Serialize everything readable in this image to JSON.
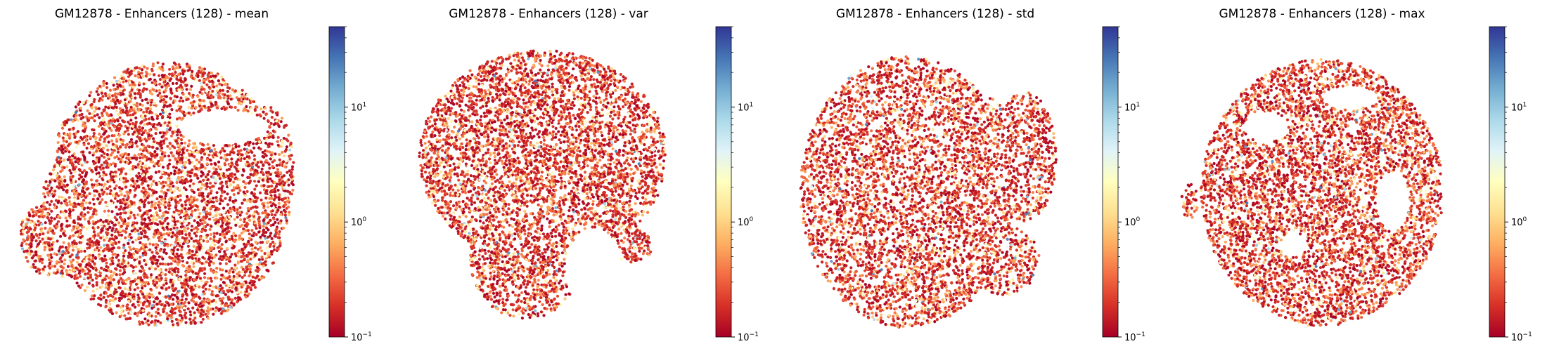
{
  "chart_data": [
    {
      "type": "scatter",
      "title": "GM12878 - Enhancers (128) - mean",
      "xlabel": "",
      "ylabel": "",
      "colorbar": {
        "scale": "log",
        "cmap": "RdYlBu",
        "range": [
          0.1,
          50
        ],
        "ticks": [
          "10^-1",
          "10^0",
          "10^1"
        ]
      },
      "num_points_approx": 9000,
      "shape": "mean",
      "seed": 11
    },
    {
      "type": "scatter",
      "title": "GM12878 - Enhancers (128) - var",
      "xlabel": "",
      "ylabel": "",
      "colorbar": {
        "scale": "log",
        "cmap": "RdYlBu",
        "range": [
          0.1,
          50
        ],
        "ticks": [
          "10^-1",
          "10^0",
          "10^1"
        ]
      },
      "num_points_approx": 9000,
      "shape": "var",
      "seed": 23
    },
    {
      "type": "scatter",
      "title": "GM12878 - Enhancers (128) - std",
      "xlabel": "",
      "ylabel": "",
      "colorbar": {
        "scale": "log",
        "cmap": "RdYlBu",
        "range": [
          0.1,
          50
        ],
        "ticks": [
          "10^-1",
          "10^0",
          "10^1"
        ]
      },
      "num_points_approx": 9000,
      "shape": "std",
      "seed": 37
    },
    {
      "type": "scatter",
      "title": "GM12878 - Enhancers (128) - max",
      "xlabel": "",
      "ylabel": "",
      "colorbar": {
        "scale": "log",
        "cmap": "RdYlBu",
        "range": [
          0.1,
          50
        ],
        "ticks": [
          "10^-1",
          "10^0",
          "10^1"
        ]
      },
      "num_points_approx": 9000,
      "shape": "max",
      "seed": 53
    }
  ],
  "colors": {
    "cmap_stops": [
      "#a50026",
      "#d73027",
      "#f46d43",
      "#fdae61",
      "#fee090",
      "#ffffbf",
      "#e0f3f8",
      "#abd9e9",
      "#74add1",
      "#4575b4",
      "#313695"
    ]
  }
}
